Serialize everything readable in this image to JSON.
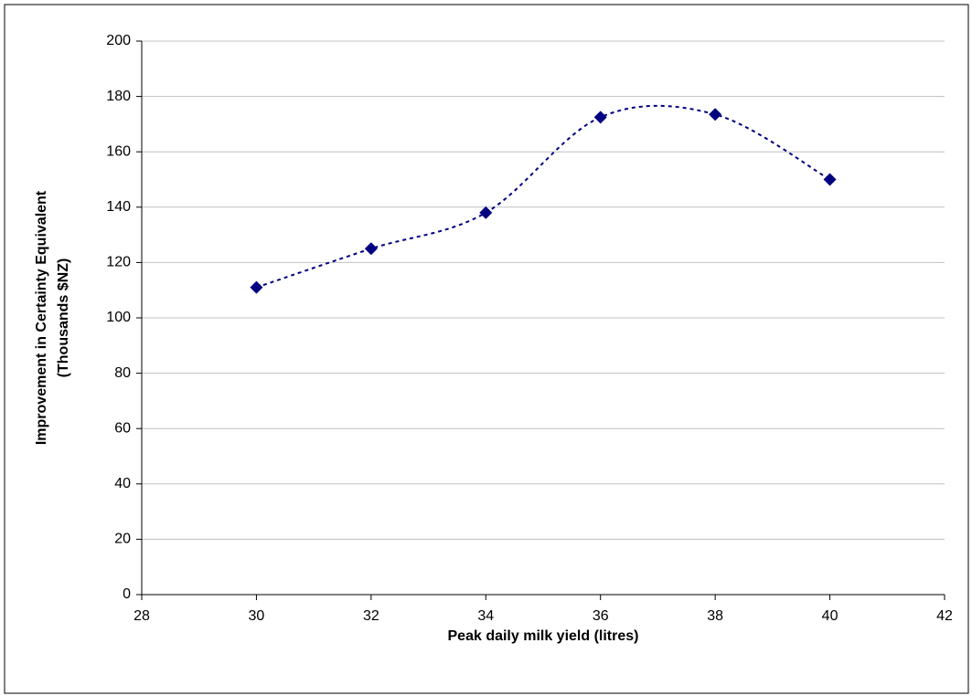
{
  "chart_data": {
    "type": "scatter",
    "xlabel": "Peak daily milk yield (litres)",
    "ylabel": [
      "Improvement in Certainty Equivalent",
      "(Thousands $NZ)"
    ],
    "x": [
      30,
      32,
      34,
      36,
      38,
      40
    ],
    "values": [
      111,
      125,
      138,
      172.5,
      173.5,
      150
    ],
    "color": "#000080",
    "smooth_line": true,
    "xlim": [
      28,
      42
    ],
    "xticks": [
      28,
      30,
      32,
      34,
      36,
      38,
      40,
      42
    ],
    "ylim": [
      0,
      200
    ],
    "yticks": [
      0,
      20,
      40,
      60,
      80,
      100,
      120,
      140,
      160,
      180,
      200
    ],
    "grid": true
  }
}
